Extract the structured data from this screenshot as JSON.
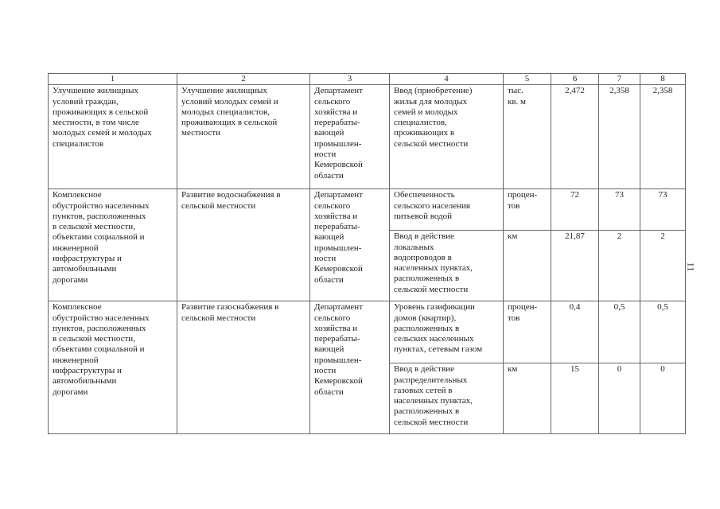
{
  "page_number": "11",
  "table": {
    "headers": [
      "1",
      "2",
      "3",
      "4",
      "5",
      "6",
      "7",
      "8"
    ],
    "rows": [
      {
        "goal": "Улучшение жилищных\nусловий граждан,\nпроживающих в сельской\nместности, в том числе\nмолодых семей и молодых\nспециалистов",
        "task": "Улучшение жилищных\nусловий молодых семей и\nмолодых специалистов,\nпроживающих в сельской\nместности",
        "executor": "Департамент\nсельского\nхозяйства и\nперерабаты-\nвающей\nпромышлен-\nности\nКемеровской\nобласти",
        "indicators": [
          {
            "name": "Ввод (приобретение)\nжилья для молодых\nсемей и молодых\nспециалистов,\nпроживающих в\nсельской местности",
            "unit": "тыс.\nкв. м",
            "v6": "2,472",
            "v7": "2,358",
            "v8": "2,358"
          }
        ]
      },
      {
        "goal": "Комплексное\nобустройство населенных\nпунктов,  расположенных\nв сельской местности,\nобъектами социальной и\nинженерной\nинфраструктуры и\nавтомобильными\nдорогами",
        "task": "Развитие водоснабжения в\nсельской местности",
        "executor": "Департамент\nсельского\nхозяйства и\nперерабаты-\nвающей\nпромышлен-\nности\nКемеровской\nобласти",
        "indicators": [
          {
            "name": "Обеспеченность\nсельского населения\nпитьевой водой",
            "unit": "процен-\nтов",
            "v6": "72",
            "v7": "73",
            "v8": "73"
          },
          {
            "name": "Ввод в действие\nлокальных\nводопроводов в\nнаселенных пунктах,\nрасположенных в\nсельской местности",
            "unit": "км",
            "v6": "21,87",
            "v7": "2",
            "v8": "2"
          }
        ]
      },
      {
        "goal": "Комплексное\nобустройство населенных\nпунктов,  расположенных\nв сельской местности,\nобъектами социальной и\nинженерной\nинфраструктуры и\nавтомобильными\nдорогами",
        "task": "Развитие газоснабжения в\nсельской местности",
        "executor": "Департамент\nсельского\nхозяйства и\nперерабаты-\nвающей\nпромышлен-\nности\nКемеровской\nобласти",
        "indicators": [
          {
            "name": "Уровень газификации\nдомов (квартир),\nрасположенных в\nсельских населенных\nпунктах, сетевым газом",
            "unit": "процен-\nтов",
            "v6": "0,4",
            "v7": "0,5",
            "v8": "0,5"
          },
          {
            "name": "Ввод в действие\nраспределительных\nгазовых сетей в\nнаселенных пунктах,\nрасположенных в\nсельской местности",
            "unit": "км",
            "v6": "15",
            "v7": "0",
            "v8": "0"
          }
        ]
      }
    ]
  }
}
